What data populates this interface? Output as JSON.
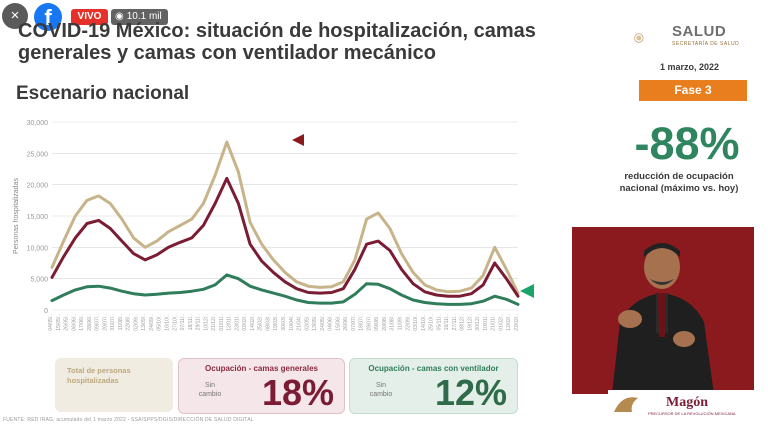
{
  "overlay": {
    "close_icon": "×",
    "facebook_logo": "f",
    "live_label": "VIVO",
    "views": "10.1 mil"
  },
  "header": {
    "title": "COVID-19 México: situación de hospitalización, camas generales y camas con ventilador mecánico",
    "subtitle": "Escenario nacional",
    "brand": "SALUD",
    "brand_sub": "SECRETARÍA DE SALUD",
    "date": "1 marzo, 2022",
    "phase": "Fase 3"
  },
  "summary": {
    "big_value": "-88%",
    "description": "reducción de ocupación nacional (máximo vs. hoy)"
  },
  "cards": {
    "total_label": "Total de personas hospitalizadas",
    "general_title": "Ocupación - camas generales",
    "general_status": "Sin cambio",
    "general_value": "18%",
    "ventilator_title": "Ocupación - camas con ventilador",
    "ventilator_status": "Sin cambio",
    "ventilator_value": "12%"
  },
  "footer": {
    "source": "FUENTE: RED IRAG, acumulado del 1 marzo 2022   -  SSA/SPPS/DGIS/DIRECCIÓN DE SALUD DIGITAL"
  },
  "interpreter_logo": {
    "text": "Magón",
    "sub": "PRECURSOR DE LA REVOLUCIÓN MEXICANA"
  },
  "colors": {
    "total": "#c8b48a",
    "general": "#7a1c33",
    "ventilator": "#2f7d5a",
    "phase": "#e87e1e"
  },
  "chart_data": {
    "type": "line",
    "ylabel": "Personas hospitalizadas",
    "ylim": [
      0,
      30000
    ],
    "yticks": [
      "0",
      "5,000",
      "10,000",
      "15,000",
      "20,000",
      "25,000",
      "30,000"
    ],
    "x_tick_labels": [
      "04/05/..",
      "15/05/..",
      "26/05/..",
      "06/06/..",
      "17/06/..",
      "28/06/..",
      "09/07/..",
      "20/07/..",
      "31/07/..",
      "11/08/..",
      "22/08/..",
      "02/09/..",
      "13/09/..",
      "24/09/..",
      "05/10/..",
      "16/10/..",
      "27/10/..",
      "07/11/..",
      "18/11/..",
      "29/11/..",
      "10/12/..",
      "21/12/..",
      "01/01/..",
      "12/01/..",
      "23/01/..",
      "03/02/..",
      "14/02/..",
      "25/02/..",
      "08/03/..",
      "19/03/..",
      "30/03/..",
      "10/04/..",
      "21/04/..",
      "02/05/..",
      "13/05/..",
      "24/05/..",
      "04/06/..",
      "15/06/..",
      "26/06/..",
      "07/07/..",
      "18/07/..",
      "29/07/..",
      "09/08/..",
      "20/08/..",
      "31/08/..",
      "11/09/..",
      "22/09/..",
      "03/10/..",
      "14/10/..",
      "25/10/..",
      "05/11/..",
      "16/11/..",
      "27/11/..",
      "08/12/..",
      "19/12/..",
      "30/12/..",
      "10/01/..",
      "21/01/..",
      "01/02/..",
      "12/02/..",
      "23/02/.."
    ],
    "series": [
      {
        "name": "Total de personas hospitalizadas",
        "color": "#c8b48a",
        "values": [
          6800,
          11000,
          15000,
          17500,
          18200,
          17000,
          14500,
          11500,
          10000,
          11000,
          12500,
          13500,
          14500,
          17000,
          21500,
          26800,
          22000,
          14000,
          10500,
          8000,
          6000,
          4500,
          3800,
          3600,
          3700,
          4500,
          8000,
          14500,
          15500,
          13000,
          9000,
          6000,
          4000,
          3200,
          2900,
          3000,
          3500,
          5500,
          10000,
          6500,
          2700
        ]
      },
      {
        "name": "Ocupación - camas generales",
        "color": "#7a1c33",
        "values": [
          5200,
          8500,
          11500,
          13800,
          14300,
          13000,
          11000,
          9000,
          8000,
          8800,
          10000,
          10800,
          11500,
          13500,
          17000,
          21000,
          17000,
          10500,
          7800,
          6000,
          4500,
          3400,
          2800,
          2700,
          2800,
          3400,
          6500,
          10500,
          11000,
          9500,
          6500,
          4200,
          2900,
          2400,
          2200,
          2200,
          2600,
          4000,
          7500,
          5000,
          2200
        ]
      },
      {
        "name": "Ocupación - camas con ventilador",
        "color": "#2f7d5a",
        "values": [
          1500,
          2400,
          3200,
          3700,
          3800,
          3500,
          3000,
          2600,
          2400,
          2500,
          2700,
          2800,
          3000,
          3300,
          4000,
          5600,
          5000,
          3800,
          3200,
          2700,
          2200,
          1600,
          1200,
          1100,
          1100,
          1300,
          2500,
          4200,
          4100,
          3400,
          2400,
          1600,
          1200,
          1000,
          900,
          900,
          1000,
          1400,
          2200,
          1700,
          900
        ]
      }
    ]
  }
}
